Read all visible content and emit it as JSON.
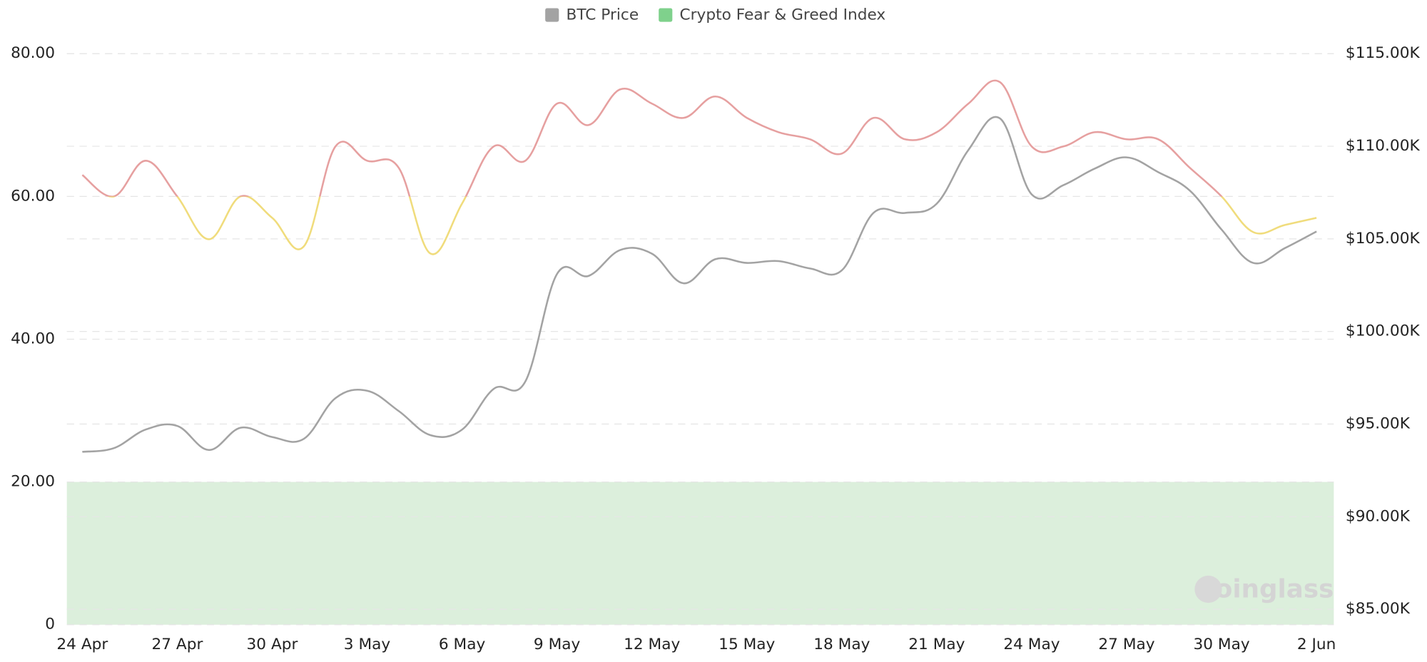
{
  "chart_data": {
    "type": "line",
    "categories": [
      "24 Apr",
      null,
      null,
      "27 Apr",
      null,
      null,
      "30 Apr",
      null,
      null,
      "3 May",
      null,
      null,
      "6 May",
      null,
      null,
      "9 May",
      null,
      null,
      "12 May",
      null,
      null,
      "15 May",
      null,
      null,
      "18 May",
      null,
      null,
      "21 May",
      null,
      null,
      "24 May",
      null,
      null,
      "27 May",
      null,
      null,
      "30 May",
      null,
      null,
      "2 Jun"
    ],
    "series": [
      {
        "name": "BTC Price",
        "color": "#a3a3a3",
        "axis": "y2",
        "values": [
          93500,
          93700,
          94700,
          94900,
          93600,
          94800,
          94300,
          94200,
          96400,
          96800,
          95700,
          94400,
          94700,
          96900,
          97300,
          103100,
          103000,
          104400,
          104200,
          102600,
          103900,
          103700,
          103800,
          103400,
          103300,
          106400,
          106400,
          106900,
          109800,
          111500,
          107400,
          107900,
          108800,
          109400,
          108600,
          107600,
          105500,
          103700,
          104500,
          105400
        ]
      },
      {
        "name": "Crypto Fear & Greed Index",
        "color": "#7fd18c",
        "threshold": 60,
        "color_above": "#e6a0a0",
        "color_below": "#f0dc7c",
        "values": [
          63,
          60,
          65,
          60,
          54,
          60,
          57,
          53,
          67,
          65,
          64,
          52,
          59,
          67,
          65,
          73,
          70,
          75,
          73,
          71,
          74,
          71,
          69,
          68,
          66,
          71,
          68,
          69,
          73,
          76,
          67,
          67,
          69,
          68,
          68,
          64,
          60,
          55,
          56,
          57
        ]
      }
    ],
    "band": {
      "from": 0,
      "to": 20,
      "color": "#dcefdc"
    },
    "watermark": "coinglass",
    "ylim": [
      0,
      80
    ],
    "yticks": [
      0,
      {
        "value": 20,
        "label": "20.00"
      },
      {
        "value": 40,
        "label": "40.00"
      },
      {
        "value": 60,
        "label": "60.00"
      },
      {
        "value": 80,
        "label": "80.00"
      }
    ],
    "y2lim": [
      84165,
      115000
    ],
    "y2ticks": [
      {
        "value": 85000,
        "label": "$85.00K"
      },
      {
        "value": 90000,
        "label": "$90.00K"
      },
      {
        "value": 95000,
        "label": "$95.00K"
      },
      {
        "value": 100000,
        "label": "$100.00K"
      },
      {
        "value": 105000,
        "label": "$105.00K"
      },
      {
        "value": 110000,
        "label": "$110.00K"
      },
      {
        "value": 115000,
        "label": "$115.00K"
      }
    ],
    "grid": true,
    "legend": "top"
  }
}
